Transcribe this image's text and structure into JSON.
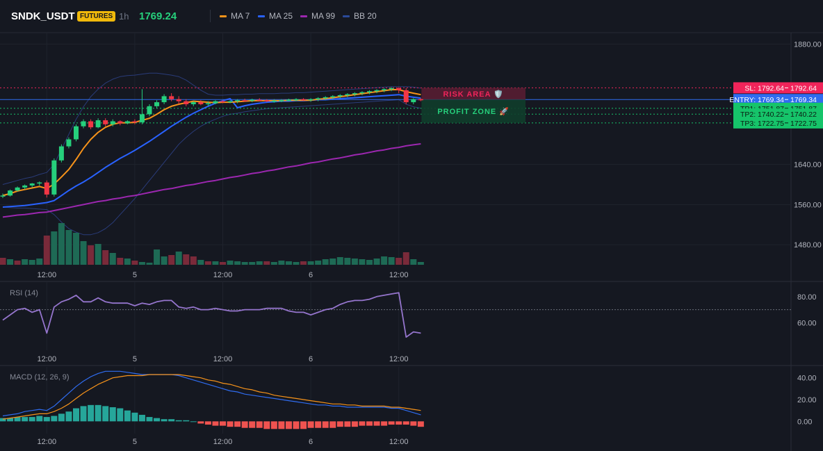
{
  "header": {
    "symbol": "SNDK_USDT",
    "badge": "FUTURES",
    "timeframe": "1h",
    "price": "1769.24",
    "legend": [
      {
        "label": "MA 7",
        "color": "#f7931a"
      },
      {
        "label": "MA 25",
        "color": "#2962ff"
      },
      {
        "label": "MA 99",
        "color": "#9c27b0"
      },
      {
        "label": "BB 20",
        "color": "#2a4a9a"
      }
    ]
  },
  "chart_data": [
    {
      "type": "candlestick",
      "ylim": [
        1440,
        1904
      ],
      "yticks": [
        {
          "value": 1880,
          "label": "1880.00"
        },
        {
          "value": 1640,
          "label": "1640.00"
        },
        {
          "value": 1560,
          "label": "1560.00"
        },
        {
          "value": 1480,
          "label": "1480.00"
        }
      ],
      "xticks": [
        {
          "index": 6,
          "label": "12:00"
        },
        {
          "index": 18,
          "label": "5"
        },
        {
          "index": 30,
          "label": "12:00"
        },
        {
          "index": 42,
          "label": "6"
        },
        {
          "index": 54,
          "label": "12:00"
        }
      ],
      "candles": [
        [
          1578,
          1582,
          1573,
          1578
        ],
        [
          1578,
          1590,
          1576,
          1588
        ],
        [
          1588,
          1596,
          1586,
          1594
        ],
        [
          1594,
          1600,
          1590,
          1598
        ],
        [
          1598,
          1603,
          1594,
          1602
        ],
        [
          1602,
          1606,
          1598,
          1604
        ],
        [
          1604,
          1608,
          1574,
          1580
        ],
        [
          1580,
          1652,
          1576,
          1648
        ],
        [
          1648,
          1680,
          1644,
          1676
        ],
        [
          1676,
          1694,
          1672,
          1690
        ],
        [
          1690,
          1720,
          1686,
          1716
        ],
        [
          1716,
          1730,
          1712,
          1726
        ],
        [
          1726,
          1730,
          1710,
          1714
        ],
        [
          1714,
          1732,
          1712,
          1728
        ],
        [
          1728,
          1732,
          1716,
          1720
        ],
        [
          1720,
          1730,
          1716,
          1726
        ],
        [
          1726,
          1728,
          1718,
          1722
        ],
        [
          1722,
          1728,
          1720,
          1726
        ],
        [
          1726,
          1730,
          1720,
          1724
        ],
        [
          1724,
          1790,
          1720,
          1740
        ],
        [
          1740,
          1760,
          1736,
          1756
        ],
        [
          1756,
          1768,
          1752,
          1764
        ],
        [
          1764,
          1780,
          1760,
          1776
        ],
        [
          1776,
          1782,
          1766,
          1770
        ],
        [
          1770,
          1776,
          1760,
          1766
        ],
        [
          1766,
          1770,
          1756,
          1760
        ],
        [
          1760,
          1766,
          1756,
          1764
        ],
        [
          1764,
          1768,
          1758,
          1760
        ],
        [
          1760,
          1766,
          1756,
          1762
        ],
        [
          1762,
          1768,
          1760,
          1766
        ],
        [
          1766,
          1768,
          1762,
          1764
        ],
        [
          1764,
          1768,
          1762,
          1766
        ],
        [
          1766,
          1770,
          1762,
          1768
        ],
        [
          1768,
          1771,
          1765,
          1767
        ],
        [
          1767,
          1771,
          1764,
          1769
        ],
        [
          1769,
          1772,
          1766,
          1768
        ],
        [
          1768,
          1770,
          1764,
          1766
        ],
        [
          1766,
          1770,
          1763,
          1767
        ],
        [
          1767,
          1770,
          1764,
          1768
        ],
        [
          1768,
          1771,
          1766,
          1769
        ],
        [
          1769,
          1772,
          1766,
          1770
        ],
        [
          1770,
          1772,
          1767,
          1768
        ],
        [
          1768,
          1772,
          1765,
          1770
        ],
        [
          1770,
          1774,
          1766,
          1772
        ],
        [
          1772,
          1776,
          1768,
          1774
        ],
        [
          1774,
          1778,
          1770,
          1776
        ],
        [
          1776,
          1780,
          1772,
          1778
        ],
        [
          1778,
          1782,
          1774,
          1780
        ],
        [
          1780,
          1784,
          1776,
          1782
        ],
        [
          1782,
          1786,
          1778,
          1784
        ],
        [
          1784,
          1788,
          1780,
          1786
        ],
        [
          1786,
          1790,
          1782,
          1788
        ],
        [
          1788,
          1792,
          1784,
          1790
        ],
        [
          1790,
          1794,
          1786,
          1792
        ],
        [
          1792,
          1794,
          1782,
          1788
        ],
        [
          1788,
          1792,
          1760,
          1764
        ],
        [
          1764,
          1772,
          1760,
          1770
        ],
        [
          1770,
          1772,
          1766,
          1769
        ]
      ],
      "volume": [
        [
          10,
          "#7a2a3a"
        ],
        [
          8,
          "#1e6a55"
        ],
        [
          6,
          "#7a2a3a"
        ],
        [
          8,
          "#1e6a55"
        ],
        [
          7,
          "#1e6a55"
        ],
        [
          9,
          "#1e6a55"
        ],
        [
          42,
          "#7a2a3a"
        ],
        [
          48,
          "#1e6a55"
        ],
        [
          60,
          "#1e6a55"
        ],
        [
          50,
          "#1e6a55"
        ],
        [
          46,
          "#1e6a55"
        ],
        [
          34,
          "#1e6a55"
        ],
        [
          28,
          "#7a2a3a"
        ],
        [
          30,
          "#1e6a55"
        ],
        [
          21,
          "#7a2a3a"
        ],
        [
          17,
          "#1e6a55"
        ],
        [
          10,
          "#7a2a3a"
        ],
        [
          9,
          "#1e6a55"
        ],
        [
          6,
          "#7a2a3a"
        ],
        [
          4,
          "#1e6a55"
        ],
        [
          3,
          "#1e6a55"
        ],
        [
          22,
          "#1e6a55"
        ],
        [
          12,
          "#1e6a55"
        ],
        [
          14,
          "#7a2a3a"
        ],
        [
          19,
          "#1e6a55"
        ],
        [
          15,
          "#7a2a3a"
        ],
        [
          12,
          "#7a2a3a"
        ],
        [
          7,
          "#1e6a55"
        ],
        [
          5,
          "#7a2a3a"
        ],
        [
          5,
          "#1e6a55"
        ],
        [
          4,
          "#7a2a3a"
        ],
        [
          6,
          "#1e6a55"
        ],
        [
          5,
          "#1e6a55"
        ],
        [
          4,
          "#1e6a55"
        ],
        [
          4,
          "#1e6a55"
        ],
        [
          5,
          "#1e6a55"
        ],
        [
          5,
          "#7a2a3a"
        ],
        [
          4,
          "#1e6a55"
        ],
        [
          6,
          "#1e6a55"
        ],
        [
          5,
          "#1e6a55"
        ],
        [
          4,
          "#1e6a55"
        ],
        [
          5,
          "#7a2a3a"
        ],
        [
          5,
          "#1e6a55"
        ],
        [
          6,
          "#1e6a55"
        ],
        [
          8,
          "#1e6a55"
        ],
        [
          9,
          "#1e6a55"
        ],
        [
          11,
          "#1e6a55"
        ],
        [
          10,
          "#1e6a55"
        ],
        [
          9,
          "#1e6a55"
        ],
        [
          8,
          "#1e6a55"
        ],
        [
          7,
          "#1e6a55"
        ],
        [
          9,
          "#1e6a55"
        ],
        [
          12,
          "#1e6a55"
        ],
        [
          11,
          "#1e6a55"
        ],
        [
          10,
          "#7a2a3a"
        ],
        [
          18,
          "#7a2a3a"
        ],
        [
          8,
          "#1e6a55"
        ],
        [
          4,
          "#1e6a55"
        ]
      ],
      "ma7": [
        1578,
        1582,
        1587,
        1590,
        1593,
        1596,
        1592,
        1601,
        1615,
        1630,
        1650,
        1672,
        1690,
        1704,
        1714,
        1720,
        1723,
        1723,
        1724,
        1728,
        1732,
        1740,
        1749,
        1756,
        1760,
        1763,
        1766,
        1765,
        1764,
        1763,
        1764,
        1764,
        1765,
        1766,
        1767,
        1767,
        1767,
        1767,
        1767,
        1768,
        1768,
        1768,
        1768,
        1770,
        1771,
        1773,
        1775,
        1777,
        1779,
        1781,
        1783,
        1785,
        1787,
        1789,
        1789,
        1785,
        1782,
        1779
      ],
      "ma25": [
        1555,
        1556,
        1557,
        1558,
        1560,
        1562,
        1564,
        1568,
        1578,
        1588,
        1597,
        1605,
        1614,
        1624,
        1634,
        1643,
        1652,
        1660,
        1668,
        1677,
        1686,
        1696,
        1706,
        1716,
        1725,
        1734,
        1742,
        1749,
        1756,
        1762,
        1767,
        1771,
        1753,
        1757,
        1760,
        1762,
        1764,
        1765,
        1766,
        1766,
        1767,
        1767,
        1768,
        1769,
        1769,
        1770,
        1771,
        1772,
        1773,
        1774,
        1775,
        1776,
        1777,
        1778,
        1779,
        1776,
        1774,
        1772
      ],
      "ma99": [
        1535,
        1537,
        1539,
        1540,
        1542,
        1544,
        1545,
        1548,
        1551,
        1554,
        1557,
        1560,
        1563,
        1566,
        1568,
        1571,
        1573,
        1576,
        1578,
        1581,
        1584,
        1587,
        1590,
        1592,
        1595,
        1598,
        1600,
        1603,
        1606,
        1608,
        1611,
        1614,
        1616,
        1619,
        1622,
        1624,
        1627,
        1629,
        1632,
        1635,
        1637,
        1640,
        1643,
        1645,
        1648,
        1651,
        1653,
        1656,
        1659,
        1661,
        1664,
        1667,
        1669,
        1672,
        1674,
        1677,
        1679,
        1681
      ],
      "bb_upper": [
        1600,
        1604,
        1608,
        1612,
        1615,
        1620,
        1624,
        1640,
        1670,
        1700,
        1730,
        1755,
        1775,
        1790,
        1802,
        1810,
        1815,
        1817,
        1818,
        1820,
        1822,
        1822,
        1820,
        1818,
        1815,
        1808,
        1798,
        1788,
        1780,
        1778,
        1778,
        1779,
        1779,
        1780,
        1780,
        1781,
        1781,
        1781,
        1782,
        1782,
        1783,
        1783,
        1784,
        1785,
        1786,
        1787,
        1788,
        1789,
        1790,
        1791,
        1792,
        1793,
        1794,
        1795,
        1795,
        1795,
        1794,
        1792
      ],
      "bb_lower": [
        1555,
        1554,
        1553,
        1553,
        1552,
        1551,
        1550,
        1540,
        1525,
        1512,
        1505,
        1500,
        1500,
        1504,
        1512,
        1524,
        1540,
        1556,
        1572,
        1590,
        1608,
        1626,
        1644,
        1662,
        1680,
        1694,
        1706,
        1716,
        1724,
        1730,
        1736,
        1740,
        1742,
        1745,
        1747,
        1749,
        1751,
        1752,
        1753,
        1754,
        1755,
        1756,
        1757,
        1758,
        1759,
        1760,
        1761,
        1762,
        1763,
        1764,
        1765,
        1766,
        1767,
        1768,
        1769,
        1760,
        1755,
        1752
      ],
      "levels": [
        {
          "name": "SL",
          "value": 1792.64,
          "label": "SL: 1792.64",
          "price": "1792.64",
          "color": "#f0245a"
        },
        {
          "name": "ENTRY",
          "value": 1769.34,
          "label": "ENTRY: 1769.34",
          "price": "1769.34",
          "color": "#2f6cf0"
        },
        {
          "name": "TP1",
          "value": 1751.87,
          "label": "TP1: 1751.87",
          "price": "1751.87",
          "color": "#16c46a"
        },
        {
          "name": "TP2",
          "value": 1740.22,
          "label": "TP2: 1740.22",
          "price": "1740.22",
          "color": "#16c46a"
        },
        {
          "name": "TP3",
          "value": 1722.75,
          "label": "TP3: 1722.75",
          "price": "1722.75",
          "color": "#16c46a"
        }
      ],
      "zones": {
        "risk_label": "RISK AREA 🛡️",
        "profit_label": "PROFIT ZONE 🚀"
      }
    },
    {
      "type": "line",
      "title": "RSI (14)",
      "ylim": [
        40,
        90
      ],
      "yticks": [
        {
          "value": 80,
          "label": "80.00"
        },
        {
          "value": 60,
          "label": "60.00"
        }
      ],
      "reference": 70,
      "color": "#9575cd",
      "xticks": [
        {
          "index": 6,
          "label": "12:00"
        },
        {
          "index": 18,
          "label": "5"
        },
        {
          "index": 30,
          "label": "12:00"
        },
        {
          "index": 42,
          "label": "6"
        },
        {
          "index": 54,
          "label": "12:00"
        }
      ],
      "values": [
        62,
        66,
        70,
        71,
        68,
        70,
        52,
        72,
        76,
        78,
        81,
        76,
        76,
        79,
        76,
        75,
        75,
        75,
        73,
        75,
        74,
        76,
        77,
        77,
        72,
        71,
        72,
        70,
        70,
        71,
        70,
        69,
        69,
        70,
        70,
        70,
        71,
        71,
        71,
        69,
        68,
        68,
        66,
        68,
        70,
        71,
        74,
        76,
        77,
        77,
        78,
        80,
        81,
        82,
        83,
        49,
        53,
        52
      ]
    },
    {
      "type": "bar",
      "title": "MACD (12, 26, 9)",
      "ylim": [
        -10,
        50
      ],
      "yticks": [
        {
          "value": 40,
          "label": "40.00"
        },
        {
          "value": 20,
          "label": "20.00"
        },
        {
          "value": 0,
          "label": "0.00"
        }
      ],
      "xticks": [
        {
          "index": 6,
          "label": "12:00"
        },
        {
          "index": 18,
          "label": "5"
        },
        {
          "index": 30,
          "label": "12:00"
        },
        {
          "index": 42,
          "label": "6"
        },
        {
          "index": 54,
          "label": "12:00"
        }
      ],
      "histogram": [
        3,
        3,
        4,
        4,
        4,
        5,
        4,
        5,
        7,
        9,
        12,
        14,
        15,
        15,
        14,
        13,
        12,
        10,
        8,
        6,
        4,
        3,
        2,
        2,
        1,
        1,
        0,
        -2,
        -3,
        -4,
        -4,
        -5,
        -5,
        -6,
        -6,
        -6,
        -7,
        -7,
        -7,
        -7,
        -7,
        -7,
        -6,
        -6,
        -6,
        -6,
        -5,
        -5,
        -5,
        -4,
        -4,
        -4,
        -4,
        -3,
        -3,
        -3,
        -4,
        -5
      ],
      "series": [
        {
          "name": "MACD",
          "color": "#2f6cf0",
          "values": [
            5,
            6,
            7,
            9,
            10,
            11,
            10,
            14,
            20,
            26,
            32,
            37,
            41,
            44,
            46,
            46,
            46,
            45,
            44,
            43,
            43,
            43,
            43,
            43,
            42,
            40,
            38,
            36,
            34,
            32,
            30,
            28,
            27,
            25,
            24,
            23,
            22,
            21,
            20,
            19,
            18,
            17,
            16,
            15,
            15,
            14,
            14,
            13,
            13,
            13,
            13,
            13,
            13,
            12,
            12,
            10,
            8,
            6
          ]
        },
        {
          "name": "Signal",
          "color": "#f7931a",
          "values": [
            2,
            3,
            4,
            5,
            6,
            7,
            7,
            9,
            12,
            16,
            21,
            26,
            30,
            34,
            37,
            40,
            41,
            42,
            42,
            42,
            43,
            43,
            43,
            43,
            43,
            42,
            41,
            40,
            38,
            37,
            35,
            34,
            32,
            30,
            29,
            27,
            26,
            24,
            23,
            22,
            21,
            20,
            19,
            18,
            17,
            16,
            16,
            15,
            15,
            14,
            14,
            14,
            14,
            13,
            13,
            12,
            11,
            10
          ]
        }
      ]
    }
  ]
}
